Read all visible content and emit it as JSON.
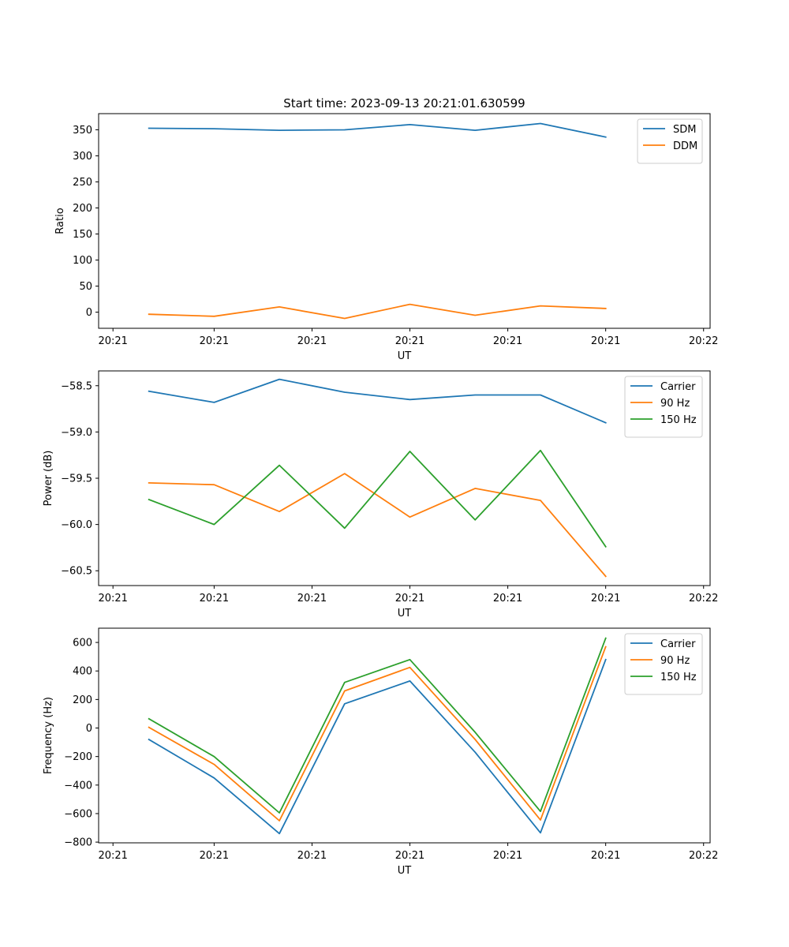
{
  "figure_title": "Start time: 2023-09-13 20:21:01.630599",
  "colors": {
    "blue": "#1f77b4",
    "orange": "#ff7f0e",
    "green": "#2ca02c"
  },
  "chart_data": [
    {
      "type": "line",
      "title": "Start time: 2023-09-13 20:21:01.630599",
      "xlabel": "UT",
      "ylabel": "Ratio",
      "x": [
        1,
        2,
        3,
        4,
        5,
        6,
        7,
        8
      ],
      "xlim": [
        0.23,
        9.6
      ],
      "xticks": [
        {
          "value": 0.45,
          "label": "20:21"
        },
        {
          "value": 2.0,
          "label": "20:21"
        },
        {
          "value": 3.5,
          "label": "20:21"
        },
        {
          "value": 5.0,
          "label": "20:21"
        },
        {
          "value": 6.5,
          "label": "20:21"
        },
        {
          "value": 8.0,
          "label": "20:21"
        },
        {
          "value": 9.5,
          "label": "20:22"
        }
      ],
      "ylim": [
        -31,
        381
      ],
      "yticks": [
        {
          "value": 0,
          "label": "0"
        },
        {
          "value": 50,
          "label": "50"
        },
        {
          "value": 100,
          "label": "100"
        },
        {
          "value": 150,
          "label": "150"
        },
        {
          "value": 200,
          "label": "200"
        },
        {
          "value": 250,
          "label": "250"
        },
        {
          "value": 300,
          "label": "300"
        },
        {
          "value": 350,
          "label": "350"
        }
      ],
      "legend_position": "top-right",
      "series": [
        {
          "name": "SDM",
          "color": "#1f77b4",
          "values": [
            353,
            352,
            349,
            350,
            360,
            349,
            362,
            336
          ]
        },
        {
          "name": "DDM",
          "color": "#ff7f0e",
          "values": [
            -4,
            -8,
            10,
            -12,
            15,
            -6,
            12,
            7
          ]
        }
      ]
    },
    {
      "type": "line",
      "title": "",
      "xlabel": "UT",
      "ylabel": "Power (dB)",
      "x": [
        1,
        2,
        3,
        4,
        5,
        6,
        7,
        8
      ],
      "xlim": [
        0.23,
        9.6
      ],
      "xticks": [
        {
          "value": 0.45,
          "label": "20:21"
        },
        {
          "value": 2.0,
          "label": "20:21"
        },
        {
          "value": 3.5,
          "label": "20:21"
        },
        {
          "value": 5.0,
          "label": "20:21"
        },
        {
          "value": 6.5,
          "label": "20:21"
        },
        {
          "value": 8.0,
          "label": "20:21"
        },
        {
          "value": 9.5,
          "label": "20:22"
        }
      ],
      "ylim": [
        -60.66,
        -58.34
      ],
      "yticks": [
        {
          "value": -58.5,
          "label": "−58.5"
        },
        {
          "value": -59.0,
          "label": "−59.0"
        },
        {
          "value": -59.5,
          "label": "−59.5"
        },
        {
          "value": -60.0,
          "label": "−60.0"
        },
        {
          "value": -60.5,
          "label": "−60.5"
        }
      ],
      "legend_position": "top-right",
      "series": [
        {
          "name": "Carrier",
          "color": "#1f77b4",
          "values": [
            -58.56,
            -58.68,
            -58.43,
            -58.57,
            -58.65,
            -58.6,
            -58.6,
            -58.9
          ]
        },
        {
          "name": "90 Hz",
          "color": "#ff7f0e",
          "values": [
            -59.55,
            -59.57,
            -59.86,
            -59.45,
            -59.92,
            -59.61,
            -59.74,
            -60.56
          ]
        },
        {
          "name": "150 Hz",
          "color": "#2ca02c",
          "values": [
            -59.73,
            -60.0,
            -59.36,
            -60.04,
            -59.21,
            -59.95,
            -59.2,
            -60.24
          ]
        }
      ]
    },
    {
      "type": "line",
      "title": "",
      "xlabel": "UT",
      "ylabel": "Frequency (Hz)",
      "x": [
        1,
        2,
        3,
        4,
        5,
        6,
        7,
        8
      ],
      "xlim": [
        0.23,
        9.6
      ],
      "xticks": [
        {
          "value": 0.45,
          "label": "20:21"
        },
        {
          "value": 2.0,
          "label": "20:21"
        },
        {
          "value": 3.5,
          "label": "20:21"
        },
        {
          "value": 5.0,
          "label": "20:21"
        },
        {
          "value": 6.5,
          "label": "20:21"
        },
        {
          "value": 8.0,
          "label": "20:21"
        },
        {
          "value": 9.5,
          "label": "20:22"
        }
      ],
      "ylim": [
        -805,
        700
      ],
      "yticks": [
        {
          "value": -800,
          "label": "−800"
        },
        {
          "value": -600,
          "label": "−600"
        },
        {
          "value": -400,
          "label": "−400"
        },
        {
          "value": -200,
          "label": "−200"
        },
        {
          "value": 0,
          "label": "0"
        },
        {
          "value": 200,
          "label": "200"
        },
        {
          "value": 400,
          "label": "400"
        },
        {
          "value": 600,
          "label": "600"
        }
      ],
      "legend_position": "top-right",
      "series": [
        {
          "name": "Carrier",
          "color": "#1f77b4",
          "values": [
            -80,
            -350,
            -740,
            170,
            330,
            -170,
            -735,
            480
          ]
        },
        {
          "name": "90 Hz",
          "color": "#ff7f0e",
          "values": [
            5,
            -255,
            -650,
            260,
            425,
            -80,
            -645,
            570
          ]
        },
        {
          "name": "150 Hz",
          "color": "#2ca02c",
          "values": [
            65,
            -200,
            -595,
            320,
            480,
            -30,
            -585,
            630
          ]
        }
      ]
    }
  ]
}
